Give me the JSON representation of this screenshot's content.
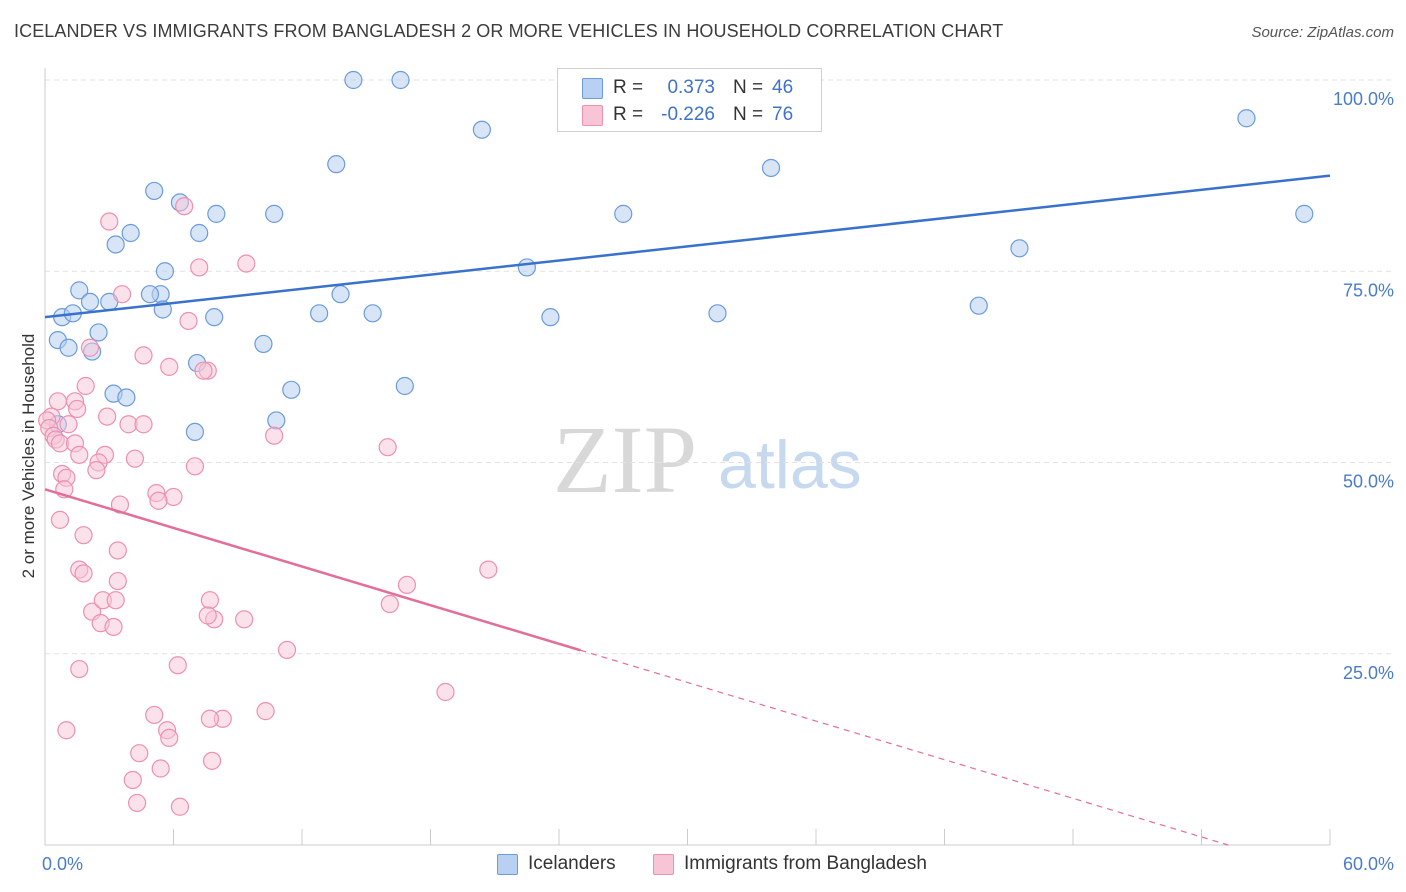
{
  "header": {
    "title": "ICELANDER VS IMMIGRANTS FROM BANGLADESH 2 OR MORE VEHICLES IN HOUSEHOLD CORRELATION CHART",
    "source": "Source: ZipAtlas.com"
  },
  "watermark": {
    "zip": "ZIP",
    "atlas": "atlas"
  },
  "legend": {
    "rows": [
      {
        "r_label": "R =",
        "r_value": "0.373",
        "n_label": "N =",
        "n_value": "46"
      },
      {
        "r_label": "R =",
        "r_value": "-0.226",
        "n_label": "N =",
        "n_value": "76"
      }
    ]
  },
  "bottom_legend": {
    "series1": "Icelanders",
    "series2": "Immigrants from Bangladesh"
  },
  "chart_data": {
    "type": "scatter",
    "title": "ICELANDER VS IMMIGRANTS FROM BANGLADESH 2 OR MORE VEHICLES IN HOUSEHOLD CORRELATION CHART",
    "xlabel": "",
    "ylabel": "2 or more Vehicles in Household",
    "xlim": [
      0,
      60
    ],
    "ylim": [
      0,
      100
    ],
    "x_tick_labels": [
      "0.0%",
      "60.0%"
    ],
    "y_ticks": [
      25,
      50,
      75,
      100
    ],
    "y_tick_labels": [
      "25.0%",
      "50.0%",
      "75.0%",
      "100.0%"
    ],
    "grid": "horizontal dashed",
    "colors": {
      "icelanders": "#6b9bdc",
      "icelanders_fill": "#b8d0f1",
      "bangladesh": "#ee8fb1",
      "bangladesh_fill": "#f8c5d6",
      "trend_blue": "#3872cc",
      "trend_pink": "#e36e97",
      "axis_text": "#4a7cc9"
    },
    "series": [
      {
        "name": "Icelanders",
        "r": 0.373,
        "n": 46,
        "trend": {
          "x": [
            0,
            60
          ],
          "y": [
            69,
            87.5
          ],
          "dashed_from_x": null
        },
        "points": [
          [
            14.4,
            100
          ],
          [
            16.6,
            100
          ],
          [
            20.4,
            93.5
          ],
          [
            56.1,
            95
          ],
          [
            33.9,
            88.5
          ],
          [
            13.6,
            89
          ],
          [
            5.1,
            85.5
          ],
          [
            6.3,
            84
          ],
          [
            8.0,
            82.5
          ],
          [
            10.7,
            82.5
          ],
          [
            27.0,
            82.5
          ],
          [
            58.8,
            82.5
          ],
          [
            4.0,
            80
          ],
          [
            3.3,
            78.5
          ],
          [
            7.2,
            80
          ],
          [
            45.5,
            78
          ],
          [
            5.6,
            75
          ],
          [
            22.5,
            75.5
          ],
          [
            1.6,
            72.5
          ],
          [
            5.4,
            72
          ],
          [
            3.0,
            71
          ],
          [
            2.1,
            71
          ],
          [
            4.9,
            72
          ],
          [
            13.8,
            72
          ],
          [
            0.8,
            69
          ],
          [
            1.3,
            69.5
          ],
          [
            5.5,
            70
          ],
          [
            7.9,
            69
          ],
          [
            12.8,
            69.5
          ],
          [
            15.3,
            69.5
          ],
          [
            23.6,
            69
          ],
          [
            31.4,
            69.5
          ],
          [
            43.6,
            70.5
          ],
          [
            0.6,
            66
          ],
          [
            1.1,
            65
          ],
          [
            2.5,
            67
          ],
          [
            10.2,
            65.5
          ],
          [
            2.2,
            64.5
          ],
          [
            7.1,
            63
          ],
          [
            16.8,
            60
          ],
          [
            3.2,
            59
          ],
          [
            3.8,
            58.5
          ],
          [
            10.8,
            55.5
          ],
          [
            7.0,
            54
          ],
          [
            0.6,
            55
          ],
          [
            11.5,
            59.5
          ]
        ]
      },
      {
        "name": "Immigrants from Bangladesh",
        "r": -0.226,
        "n": 76,
        "trend": {
          "x": [
            0,
            60
          ],
          "y": [
            46.5,
            -4
          ],
          "dashed_from_x": 25
        },
        "points": [
          [
            3.0,
            81.5
          ],
          [
            6.5,
            83.5
          ],
          [
            9.4,
            76
          ],
          [
            7.2,
            75.5
          ],
          [
            3.6,
            72
          ],
          [
            6.7,
            68.5
          ],
          [
            2.1,
            65
          ],
          [
            4.6,
            64
          ],
          [
            5.8,
            62.5
          ],
          [
            7.6,
            62
          ],
          [
            1.9,
            60
          ],
          [
            0.6,
            58
          ],
          [
            1.4,
            58
          ],
          [
            1.5,
            57
          ],
          [
            0.3,
            56
          ],
          [
            0.1,
            55.5
          ],
          [
            0.2,
            54.5
          ],
          [
            0.4,
            53.5
          ],
          [
            0.5,
            53
          ],
          [
            0.7,
            52.5
          ],
          [
            1.1,
            55
          ],
          [
            2.9,
            56
          ],
          [
            3.9,
            55
          ],
          [
            4.6,
            55
          ],
          [
            1.4,
            52.5
          ],
          [
            1.6,
            51
          ],
          [
            2.8,
            51
          ],
          [
            2.5,
            50
          ],
          [
            2.4,
            49
          ],
          [
            0.8,
            48.5
          ],
          [
            1.0,
            48
          ],
          [
            0.9,
            46.5
          ],
          [
            5.2,
            46
          ],
          [
            6.0,
            45.5
          ],
          [
            7.0,
            49.5
          ],
          [
            3.5,
            44.5
          ],
          [
            5.3,
            45
          ],
          [
            0.7,
            42.5
          ],
          [
            1.8,
            40.5
          ],
          [
            3.4,
            38.5
          ],
          [
            1.6,
            36
          ],
          [
            1.8,
            35.5
          ],
          [
            3.4,
            34.5
          ],
          [
            2.2,
            30.5
          ],
          [
            2.7,
            32
          ],
          [
            3.3,
            32
          ],
          [
            2.6,
            29
          ],
          [
            3.2,
            28.5
          ],
          [
            7.7,
            32
          ],
          [
            7.9,
            29.5
          ],
          [
            9.3,
            29.5
          ],
          [
            16.1,
            31.5
          ],
          [
            16.9,
            34
          ],
          [
            20.7,
            36
          ],
          [
            7.6,
            30
          ],
          [
            11.3,
            25.5
          ],
          [
            1.6,
            23
          ],
          [
            6.2,
            23.5
          ],
          [
            18.7,
            20
          ],
          [
            10.3,
            17.5
          ],
          [
            5.1,
            17
          ],
          [
            8.3,
            16.5
          ],
          [
            5.7,
            15
          ],
          [
            5.8,
            14
          ],
          [
            1.0,
            15
          ],
          [
            4.4,
            12
          ],
          [
            7.8,
            11
          ],
          [
            5.4,
            10
          ],
          [
            4.1,
            8.5
          ],
          [
            4.3,
            5.5
          ],
          [
            6.3,
            5
          ],
          [
            7.7,
            16.5
          ],
          [
            16.0,
            52
          ],
          [
            10.7,
            53.5
          ],
          [
            7.4,
            62
          ],
          [
            4.2,
            50.5
          ]
        ]
      }
    ]
  }
}
